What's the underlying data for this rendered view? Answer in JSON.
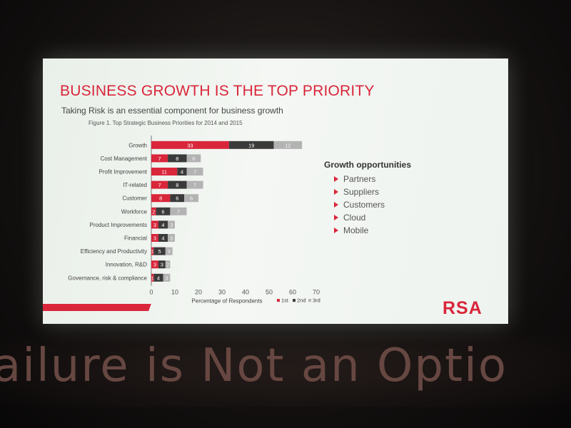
{
  "slide": {
    "title": "BUSINESS GROWTH IS THE TOP PRIORITY",
    "subtitle": "Taking Risk is an essential component for business growth",
    "figure_caption": "Figure 1. Top Strategic Business Priorities for 2014 and 2015",
    "logo": "RSA",
    "growth": {
      "title": "Growth opportunities",
      "items": [
        "Partners",
        "Suppliers",
        "Customers",
        "Cloud",
        "Mobile"
      ]
    }
  },
  "backdrop": {
    "tagline": "ailure is Not an Optio"
  },
  "colors": {
    "accent": "#d9263a",
    "first": "#d9263a",
    "second": "#3a3a3a",
    "third": "#b3b3b3"
  },
  "chart_data": {
    "type": "bar",
    "orientation": "horizontal",
    "stacked": true,
    "title": "Figure 1. Top Strategic Business Priorities for 2014 and 2015",
    "xlabel": "Percentage of Respondents",
    "ylabel": "",
    "xlim": [
      0,
      70
    ],
    "xticks": [
      0,
      10,
      20,
      30,
      40,
      50,
      60,
      70
    ],
    "categories": [
      "Growth",
      "Cost Management",
      "Profit Improvement",
      "IT-related",
      "Customer",
      "Workforce",
      "Product Improvements",
      "Financial",
      "Efficiency and Productivity",
      "Innovation, R&D",
      "Governance, risk & compliance"
    ],
    "series": [
      {
        "name": "1st",
        "values": [
          33,
          7,
          11,
          7,
          8,
          2,
          3,
          3,
          1,
          3,
          1
        ]
      },
      {
        "name": "2nd",
        "values": [
          19,
          8,
          4,
          8,
          6,
          6,
          4,
          4,
          5,
          3,
          4
        ]
      },
      {
        "name": "3rd",
        "values": [
          12,
          6,
          7,
          7,
          6,
          7,
          3,
          3,
          3,
          2,
          3
        ]
      }
    ],
    "legend_position": "bottom"
  }
}
